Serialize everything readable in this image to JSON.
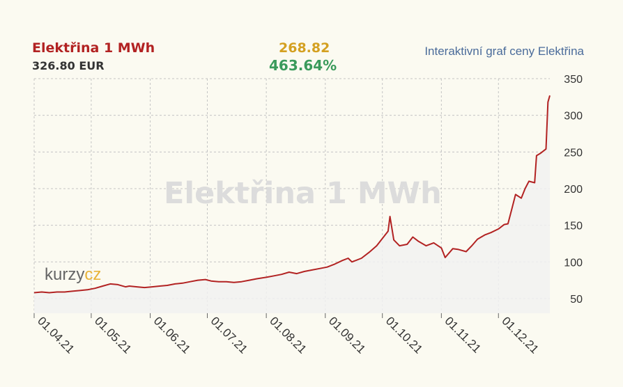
{
  "header": {
    "title": "Elektřina 1 MWh",
    "price": "326.80 EUR",
    "change": "268.82",
    "change_pct": "463.64%",
    "link": "Interaktivní graf ceny Elektřina"
  },
  "watermark": "Elektřina 1 MWh",
  "logo": {
    "part1": "kurzy",
    "part2": "cz"
  },
  "colors": {
    "line": "#b22222",
    "area": "#f1f1f1",
    "grid": "#c4c4c4",
    "change": "#d4a021",
    "percent": "#3a9a5b",
    "link": "#4a6b9a"
  },
  "chart_data": {
    "type": "area",
    "title": "Elektřina 1 MWh",
    "xlabel": "",
    "ylabel": "",
    "x_ticks": [
      "01.04.21",
      "01.05.21",
      "01.06.21",
      "01.07.21",
      "01.08.21",
      "01.09.21",
      "01.10.21",
      "01.11.21",
      "01.12.21"
    ],
    "y_ticks": [
      50,
      100,
      150,
      200,
      250,
      300,
      350
    ],
    "ylim": [
      30,
      350
    ],
    "xlim": [
      "2021-04-01",
      "2021-12-28"
    ],
    "grid": true,
    "series": [
      {
        "x": [
          "2021-04-01",
          "2021-04-05",
          "2021-04-09",
          "2021-04-13",
          "2021-04-17",
          "2021-04-21",
          "2021-04-25",
          "2021-04-29",
          "2021-05-03",
          "2021-05-07",
          "2021-05-11",
          "2021-05-15",
          "2021-05-19",
          "2021-05-21",
          "2021-05-25",
          "2021-05-29",
          "2021-06-02",
          "2021-06-06",
          "2021-06-10",
          "2021-06-14",
          "2021-06-18",
          "2021-06-22",
          "2021-06-26",
          "2021-06-30",
          "2021-07-03",
          "2021-07-07",
          "2021-07-11",
          "2021-07-15",
          "2021-07-19",
          "2021-07-23",
          "2021-07-27",
          "2021-08-01",
          "2021-08-05",
          "2021-08-09",
          "2021-08-13",
          "2021-08-17",
          "2021-08-21",
          "2021-08-25",
          "2021-08-29",
          "2021-09-02",
          "2021-09-06",
          "2021-09-10",
          "2021-09-13",
          "2021-09-15",
          "2021-09-20",
          "2021-09-24",
          "2021-09-28",
          "2021-10-01",
          "2021-10-04",
          "2021-10-05",
          "2021-10-07",
          "2021-10-10",
          "2021-10-14",
          "2021-10-17",
          "2021-10-20",
          "2021-10-24",
          "2021-10-28",
          "2021-11-01",
          "2021-11-03",
          "2021-11-07",
          "2021-11-10",
          "2021-11-14",
          "2021-11-17",
          "2021-11-20",
          "2021-11-24",
          "2021-11-27",
          "2021-12-01",
          "2021-12-04",
          "2021-12-06",
          "2021-12-08",
          "2021-12-10",
          "2021-12-13",
          "2021-12-15",
          "2021-12-17",
          "2021-12-20",
          "2021-12-21",
          "2021-12-23",
          "2021-12-26",
          "2021-12-27",
          "2021-12-28"
        ],
        "values": [
          58,
          59,
          58,
          59,
          59,
          60,
          61,
          62,
          64,
          67,
          70,
          69,
          66,
          67,
          66,
          65,
          66,
          67,
          68,
          70,
          71,
          73,
          75,
          76,
          74,
          73,
          73,
          72,
          73,
          75,
          77,
          79,
          81,
          83,
          86,
          84,
          87,
          89,
          91,
          93,
          97,
          102,
          105,
          100,
          105,
          113,
          122,
          132,
          142,
          162,
          130,
          122,
          124,
          134,
          128,
          122,
          126,
          119,
          106,
          118,
          117,
          114,
          122,
          131,
          137,
          140,
          145,
          151,
          152,
          172,
          192,
          187,
          200,
          210,
          208,
          245,
          248,
          254,
          318,
          327
        ]
      }
    ]
  }
}
